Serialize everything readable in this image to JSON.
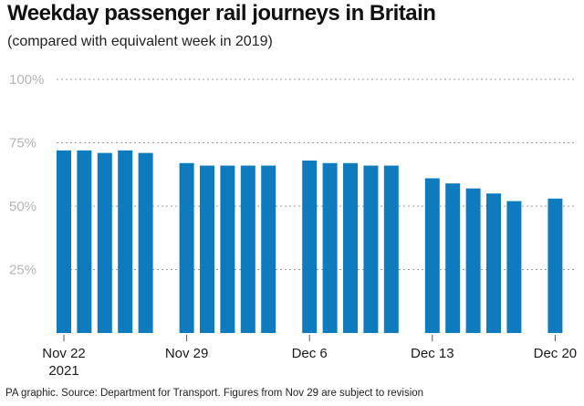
{
  "title": "Weekday passenger rail journeys in Britain",
  "subtitle": "(compared with equivalent week in 2019)",
  "footer": "PA graphic. Source: Department for Transport. Figures from Nov 29 are subject to revision",
  "colors": {
    "bar": "#0f7bbf",
    "grid": "#9a9a9a",
    "ytick": "#b5b5b5"
  },
  "chart_data": {
    "type": "bar",
    "title": "Weekday passenger rail journeys in Britain",
    "subtitle": "(compared with equivalent week in 2019)",
    "xlabel": "",
    "ylabel": "",
    "ylim": [
      0,
      100
    ],
    "y_ticks": [
      "100%",
      "75%",
      "50%",
      "25%"
    ],
    "y_tick_values": [
      100,
      75,
      50,
      25
    ],
    "grid": true,
    "x_tick_labels": [
      {
        "label": "Nov 22",
        "sublabel": "2021",
        "index": 0
      },
      {
        "label": "Nov 29",
        "sublabel": "",
        "index": 5
      },
      {
        "label": "Dec 6",
        "sublabel": "",
        "index": 10
      },
      {
        "label": "Dec 13",
        "sublabel": "",
        "index": 15
      },
      {
        "label": "Dec 20",
        "sublabel": "",
        "index": 20
      }
    ],
    "weeks": [
      {
        "week": "Nov 22",
        "values": [
          72,
          72,
          71,
          72,
          71
        ]
      },
      {
        "week": "Nov 29",
        "values": [
          67,
          66,
          66,
          66,
          66
        ]
      },
      {
        "week": "Dec 6",
        "values": [
          68,
          67,
          67,
          66,
          66
        ]
      },
      {
        "week": "Dec 13",
        "values": [
          61,
          59,
          57,
          55,
          52
        ]
      },
      {
        "week": "Dec 20",
        "values": [
          53
        ]
      }
    ]
  }
}
